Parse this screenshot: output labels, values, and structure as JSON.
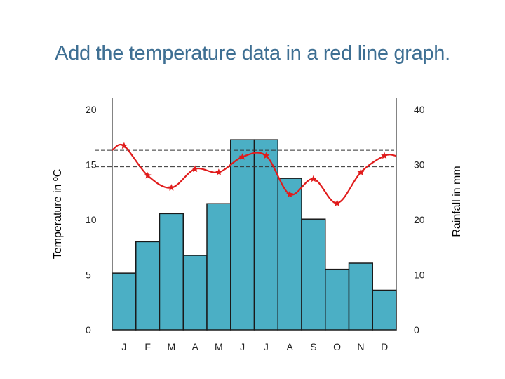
{
  "slide": {
    "title": "Add the temperature data in a red line graph."
  },
  "colors": {
    "bar_fill": "#4bafc5",
    "bar_stroke": "#1a1a1a",
    "line": "#e01b1b",
    "title": "#3e6f93",
    "dashed": "#333333"
  },
  "chart_data": {
    "type": "bar",
    "categories": [
      "J",
      "F",
      "M",
      "A",
      "M",
      "J",
      "J",
      "A",
      "S",
      "O",
      "N",
      "D"
    ],
    "series": [
      {
        "type": "bar",
        "axis": "right",
        "values": [
          10.3,
          16.0,
          21.1,
          13.5,
          22.9,
          34.5,
          34.5,
          27.5,
          20.1,
          11.0,
          12.1,
          7.2
        ]
      },
      {
        "type": "line",
        "axis": "left",
        "values": [
          16.7,
          14.0,
          12.9,
          14.6,
          14.3,
          15.7,
          15.8,
          12.3,
          13.7,
          11.5,
          14.3,
          15.8
        ]
      }
    ],
    "yleft": {
      "label": "Temperature in ºC",
      "ticks": [
        "0",
        "5",
        "10",
        "15",
        "20"
      ],
      "lim": [
        0,
        20
      ]
    },
    "yright": {
      "label": "Rainfall in mm",
      "ticks": [
        "0",
        "10",
        "20",
        "30",
        "40"
      ],
      "lim": [
        0,
        40
      ]
    },
    "dashed_lines_left": [
      16.3,
      14.8
    ],
    "grid": false,
    "legend": "none"
  }
}
